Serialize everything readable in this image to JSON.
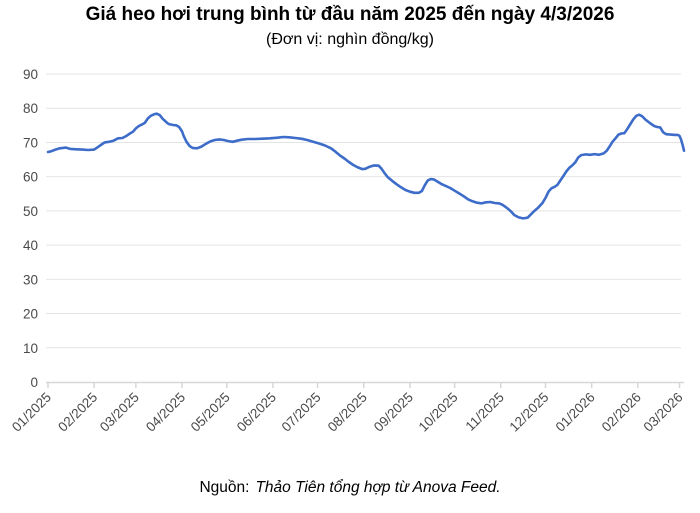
{
  "chart": {
    "title": "Giá heo hơi trung bình từ đầu năm 2025 đến ngày 4/3/2026",
    "subtitle": "(Đơn vị: nghìn đồng/kg)"
  },
  "source": {
    "prefix": "Nguồn:",
    "text": "Thảo Tiên tổng hợp từ Anova Feed."
  },
  "chart_data": {
    "type": "line",
    "title": "Giá heo hơi trung bình từ đầu năm 2025 đến ngày 4/3/2026",
    "subtitle": "(Đơn vị: nghìn đồng/kg)",
    "xlabel": "",
    "ylabel": "nghìn đồng/kg",
    "ylim": [
      0,
      90
    ],
    "y_ticks": [
      0,
      10,
      20,
      30,
      40,
      50,
      60,
      70,
      80,
      90
    ],
    "grid": "horizontal-only",
    "legend_position": "none",
    "x_tick_labels": [
      "01/2025",
      "02/2025",
      "03/2025",
      "04/2025",
      "05/2025",
      "06/2025",
      "07/2025",
      "08/2025",
      "09/2025",
      "10/2025",
      "11/2025",
      "12/2025",
      "01/2026",
      "02/2026",
      "03/2026"
    ],
    "x_tick_days": [
      0,
      31,
      59,
      90,
      120,
      151,
      181,
      212,
      243,
      273,
      304,
      334,
      365,
      396,
      424
    ],
    "x_domain_days": [
      0,
      427
    ],
    "colors": {
      "line": "#3D6CC9",
      "gridline": "#e4e4e4",
      "axis": "#d7d7d7",
      "tick_label": "#4a4a4a"
    },
    "series": [
      {
        "name": "Giá heo hơi trung bình (nghìn đồng/kg)",
        "color": "#3D6CC9",
        "points_format": "[day_since_2025-01-01, price]",
        "points": [
          [
            0,
            67.2
          ],
          [
            2,
            67.4
          ],
          [
            5,
            67.9
          ],
          [
            8,
            68.3
          ],
          [
            12,
            68.5
          ],
          [
            15,
            68.1
          ],
          [
            19,
            68.0
          ],
          [
            23,
            67.9
          ],
          [
            27,
            67.8
          ],
          [
            31,
            67.9
          ],
          [
            34,
            68.8
          ],
          [
            36,
            69.4
          ],
          [
            38,
            70.0
          ],
          [
            41,
            70.2
          ],
          [
            44,
            70.5
          ],
          [
            47,
            71.2
          ],
          [
            50,
            71.3
          ],
          [
            53,
            72.0
          ],
          [
            55,
            72.6
          ],
          [
            57,
            73.1
          ],
          [
            59,
            74.1
          ],
          [
            61,
            74.8
          ],
          [
            63,
            75.2
          ],
          [
            65,
            75.7
          ],
          [
            67,
            77.0
          ],
          [
            69,
            77.8
          ],
          [
            71,
            78.2
          ],
          [
            73,
            78.4
          ],
          [
            75,
            78.0
          ],
          [
            77,
            76.9
          ],
          [
            79,
            76.1
          ],
          [
            81,
            75.4
          ],
          [
            84,
            75.1
          ],
          [
            86,
            75.0
          ],
          [
            88,
            74.5
          ],
          [
            90,
            73.2
          ],
          [
            91,
            72.0
          ],
          [
            93,
            70.2
          ],
          [
            95,
            69.0
          ],
          [
            97,
            68.4
          ],
          [
            100,
            68.3
          ],
          [
            103,
            68.8
          ],
          [
            106,
            69.6
          ],
          [
            109,
            70.3
          ],
          [
            112,
            70.7
          ],
          [
            115,
            70.9
          ],
          [
            118,
            70.7
          ],
          [
            121,
            70.4
          ],
          [
            124,
            70.2
          ],
          [
            127,
            70.5
          ],
          [
            130,
            70.8
          ],
          [
            134,
            71.0
          ],
          [
            139,
            71.0
          ],
          [
            144,
            71.1
          ],
          [
            149,
            71.2
          ],
          [
            154,
            71.4
          ],
          [
            158,
            71.6
          ],
          [
            162,
            71.5
          ],
          [
            166,
            71.3
          ],
          [
            170,
            71.1
          ],
          [
            174,
            70.7
          ],
          [
            178,
            70.2
          ],
          [
            182,
            69.7
          ],
          [
            186,
            69.1
          ],
          [
            190,
            68.3
          ],
          [
            193,
            67.3
          ],
          [
            196,
            66.2
          ],
          [
            199,
            65.3
          ],
          [
            202,
            64.3
          ],
          [
            205,
            63.4
          ],
          [
            208,
            62.7
          ],
          [
            211,
            62.2
          ],
          [
            213,
            62.3
          ],
          [
            216,
            62.9
          ],
          [
            219,
            63.3
          ],
          [
            222,
            63.2
          ],
          [
            224,
            62.3
          ],
          [
            226,
            61.0
          ],
          [
            228,
            59.9
          ],
          [
            231,
            58.8
          ],
          [
            234,
            57.8
          ],
          [
            237,
            56.9
          ],
          [
            240,
            56.1
          ],
          [
            243,
            55.6
          ],
          [
            246,
            55.3
          ],
          [
            249,
            55.3
          ],
          [
            251,
            55.8
          ],
          [
            253,
            57.5
          ],
          [
            255,
            58.9
          ],
          [
            257,
            59.3
          ],
          [
            259,
            59.2
          ],
          [
            261,
            58.7
          ],
          [
            264,
            57.9
          ],
          [
            267,
            57.3
          ],
          [
            270,
            56.7
          ],
          [
            273,
            55.9
          ],
          [
            276,
            55.1
          ],
          [
            279,
            54.3
          ],
          [
            282,
            53.4
          ],
          [
            285,
            52.8
          ],
          [
            288,
            52.4
          ],
          [
            291,
            52.2
          ],
          [
            294,
            52.5
          ],
          [
            297,
            52.6
          ],
          [
            300,
            52.3
          ],
          [
            303,
            52.2
          ],
          [
            305,
            51.8
          ],
          [
            308,
            50.9
          ],
          [
            311,
            49.8
          ],
          [
            313,
            48.8
          ],
          [
            316,
            48.1
          ],
          [
            319,
            47.8
          ],
          [
            322,
            48.0
          ],
          [
            324,
            48.9
          ],
          [
            326,
            49.8
          ],
          [
            329,
            50.9
          ],
          [
            332,
            52.3
          ],
          [
            334,
            53.8
          ],
          [
            336,
            55.6
          ],
          [
            338,
            56.6
          ],
          [
            340,
            57.0
          ],
          [
            342,
            57.6
          ],
          [
            344,
            58.9
          ],
          [
            346,
            60.2
          ],
          [
            348,
            61.5
          ],
          [
            350,
            62.6
          ],
          [
            352,
            63.3
          ],
          [
            354,
            64.2
          ],
          [
            356,
            65.6
          ],
          [
            358,
            66.3
          ],
          [
            361,
            66.5
          ],
          [
            364,
            66.4
          ],
          [
            367,
            66.6
          ],
          [
            370,
            66.4
          ],
          [
            373,
            66.8
          ],
          [
            375,
            67.5
          ],
          [
            377,
            68.8
          ],
          [
            379,
            70.2
          ],
          [
            381,
            71.2
          ],
          [
            383,
            72.3
          ],
          [
            385,
            72.6
          ],
          [
            387,
            72.7
          ],
          [
            389,
            74.0
          ],
          [
            391,
            75.4
          ],
          [
            393,
            76.8
          ],
          [
            395,
            77.8
          ],
          [
            397,
            78.1
          ],
          [
            399,
            77.6
          ],
          [
            401,
            76.7
          ],
          [
            404,
            75.7
          ],
          [
            407,
            74.8
          ],
          [
            409,
            74.5
          ],
          [
            411,
            74.4
          ],
          [
            413,
            73.0
          ],
          [
            415,
            72.4
          ],
          [
            418,
            72.3
          ],
          [
            421,
            72.2
          ],
          [
            423,
            72.2
          ],
          [
            424,
            71.9
          ],
          [
            425,
            70.9
          ],
          [
            426,
            69.4
          ],
          [
            427,
            67.6
          ]
        ]
      }
    ]
  }
}
